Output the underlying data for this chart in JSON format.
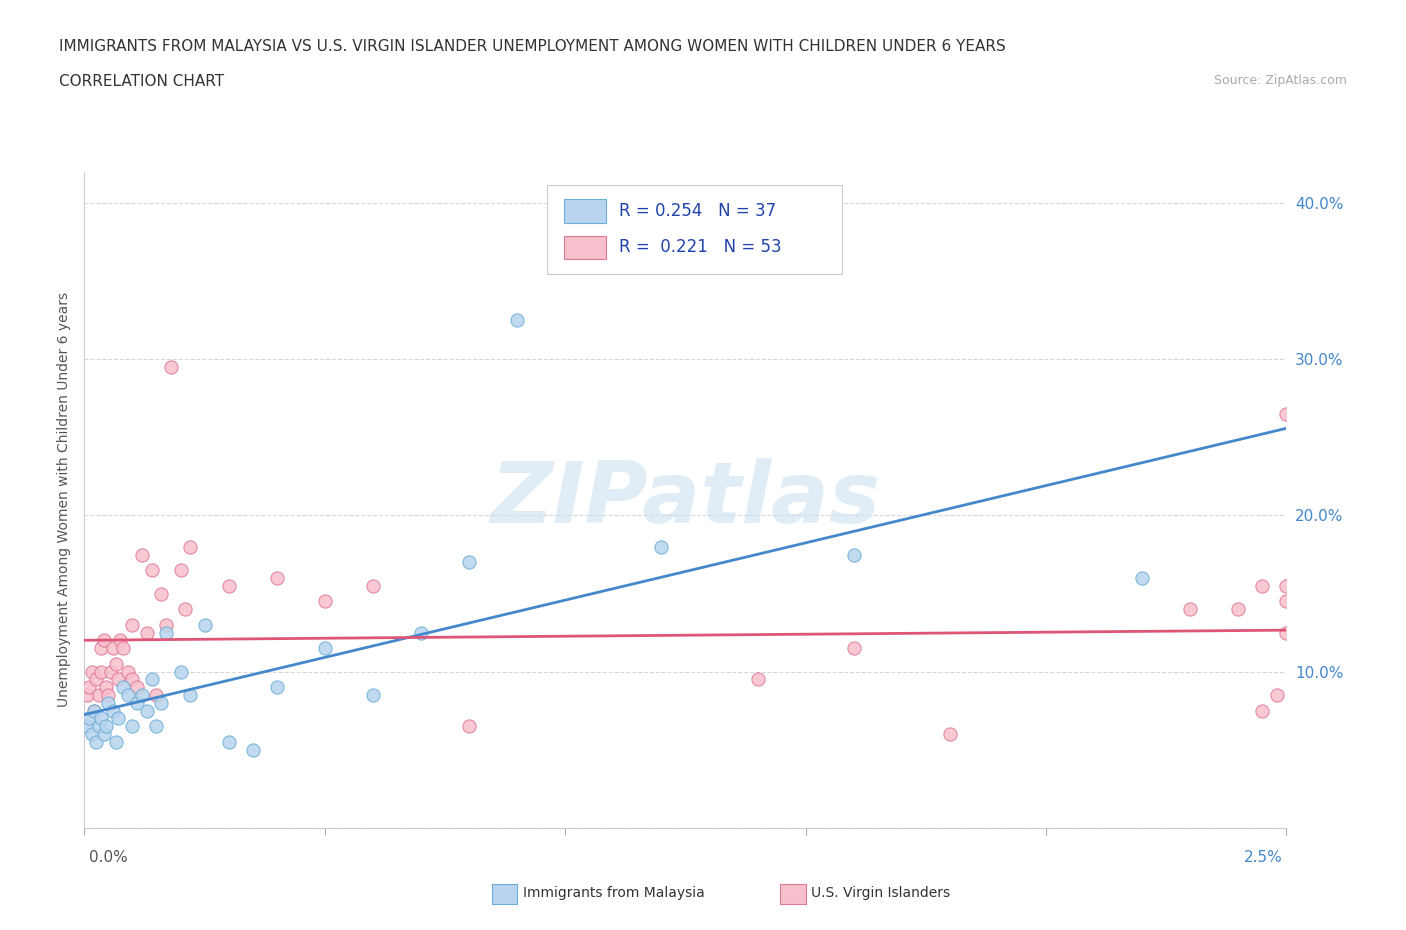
{
  "title_line1": "IMMIGRANTS FROM MALAYSIA VS U.S. VIRGIN ISLANDER UNEMPLOYMENT AMONG WOMEN WITH CHILDREN UNDER 6 YEARS",
  "title_line2": "CORRELATION CHART",
  "source": "Source: ZipAtlas.com",
  "ylabel": "Unemployment Among Women with Children Under 6 years",
  "xlim": [
    0.0,
    0.025
  ],
  "ylim": [
    0.0,
    0.42
  ],
  "x_ticks": [
    0.0,
    0.005,
    0.01,
    0.015,
    0.02,
    0.025
  ],
  "y_ticks": [
    0.0,
    0.1,
    0.2,
    0.3,
    0.4
  ],
  "y_tick_labels": [
    "",
    "10.0%",
    "20.0%",
    "30.0%",
    "40.0%"
  ],
  "blue_fill": "#b8d4ee",
  "blue_edge": "#6baed6",
  "pink_fill": "#f8c0cc",
  "pink_edge": "#e07898",
  "blue_line_color": "#4488cc",
  "pink_line_color": "#dd5577",
  "legend_text_color": "#2244aa",
  "legend_R_blue": "0.254",
  "legend_N_blue": "37",
  "legend_R_pink": "0.221",
  "legend_N_pink": "53",
  "watermark": "ZIPatlas",
  "grid_color": "#d8d8d8",
  "blue_scatter_x": [
    5e-05,
    0.0001,
    0.00015,
    0.0002,
    0.00025,
    0.0003,
    0.00035,
    0.0004,
    0.00045,
    0.0005,
    0.0006,
    0.00065,
    0.0007,
    0.0008,
    0.0009,
    0.001,
    0.0011,
    0.0012,
    0.0013,
    0.0014,
    0.0015,
    0.0016,
    0.0017,
    0.002,
    0.0022,
    0.0025,
    0.003,
    0.0035,
    0.004,
    0.005,
    0.006,
    0.007,
    0.008,
    0.009,
    0.012,
    0.016,
    0.022
  ],
  "blue_scatter_y": [
    0.065,
    0.07,
    0.06,
    0.075,
    0.055,
    0.065,
    0.07,
    0.06,
    0.065,
    0.08,
    0.075,
    0.055,
    0.07,
    0.09,
    0.085,
    0.065,
    0.08,
    0.085,
    0.075,
    0.095,
    0.065,
    0.08,
    0.125,
    0.1,
    0.085,
    0.13,
    0.055,
    0.05,
    0.09,
    0.115,
    0.085,
    0.125,
    0.17,
    0.325,
    0.18,
    0.175,
    0.16
  ],
  "pink_scatter_x": [
    5e-05,
    0.0001,
    0.00015,
    0.0002,
    0.00025,
    0.0003,
    0.00035,
    0.00035,
    0.0004,
    0.00045,
    0.0005,
    0.00055,
    0.0006,
    0.00065,
    0.0007,
    0.00075,
    0.0008,
    0.0009,
    0.001,
    0.001,
    0.0011,
    0.0012,
    0.0013,
    0.0014,
    0.0015,
    0.0016,
    0.0017,
    0.0018,
    0.002,
    0.0021,
    0.0022,
    0.003,
    0.004,
    0.005,
    0.006,
    0.008,
    0.014,
    0.016,
    0.018,
    0.023,
    0.024,
    0.0245,
    0.025,
    0.025,
    0.0248,
    0.0252,
    0.025,
    0.0245,
    0.0253,
    0.0255,
    0.0252,
    0.025,
    0.0253
  ],
  "pink_scatter_y": [
    0.085,
    0.09,
    0.1,
    0.075,
    0.095,
    0.085,
    0.1,
    0.115,
    0.12,
    0.09,
    0.085,
    0.1,
    0.115,
    0.105,
    0.095,
    0.12,
    0.115,
    0.1,
    0.095,
    0.13,
    0.09,
    0.175,
    0.125,
    0.165,
    0.085,
    0.15,
    0.13,
    0.295,
    0.165,
    0.14,
    0.18,
    0.155,
    0.16,
    0.145,
    0.155,
    0.065,
    0.095,
    0.115,
    0.06,
    0.14,
    0.14,
    0.155,
    0.145,
    0.155,
    0.085,
    0.07,
    0.125,
    0.075,
    0.145,
    0.155,
    0.085,
    0.265,
    0.075
  ]
}
